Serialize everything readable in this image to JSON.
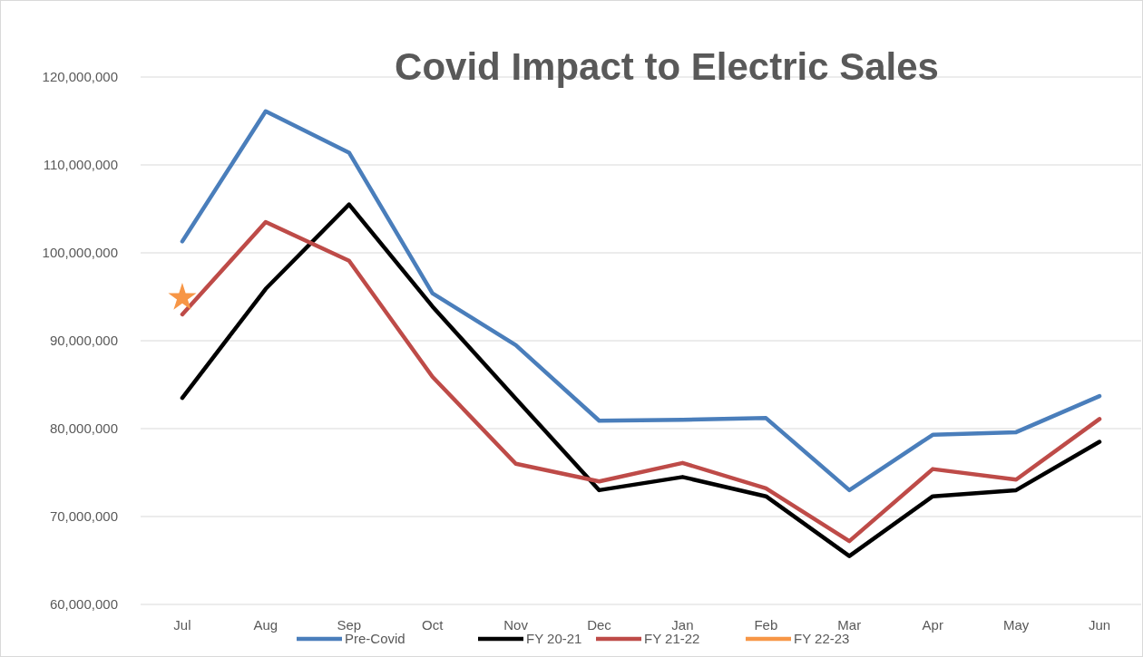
{
  "chart_data": {
    "type": "line",
    "title": "Covid Impact to Electric Sales",
    "categories": [
      "Jul",
      "Aug",
      "Sep",
      "Oct",
      "Nov",
      "Dec",
      "Jan",
      "Feb",
      "Mar",
      "Apr",
      "May",
      "Jun"
    ],
    "series": [
      {
        "name": "Pre-Covid",
        "color": "#4a7ebb",
        "values": [
          101300000,
          116100000,
          111400000,
          95400000,
          89500000,
          80900000,
          81000000,
          81200000,
          73000000,
          79300000,
          79600000,
          83700000
        ]
      },
      {
        "name": "FY 20-21",
        "color": "#000000",
        "values": [
          83500000,
          95900000,
          105500000,
          93900000,
          83400000,
          73000000,
          74500000,
          72300000,
          65500000,
          72300000,
          73000000,
          78500000
        ]
      },
      {
        "name": "FY 21-22",
        "color": "#be4b48",
        "values": [
          93000000,
          103500000,
          99100000,
          85900000,
          76000000,
          74000000,
          76100000,
          73200000,
          67200000,
          75400000,
          74200000,
          81100000
        ]
      },
      {
        "name": "FY 22-23",
        "color": "#f79646",
        "marker": "star",
        "values": [
          94900000,
          null,
          null,
          null,
          null,
          null,
          null,
          null,
          null,
          null,
          null,
          null
        ]
      }
    ],
    "ylim": [
      60000000,
      120000000
    ],
    "yticks": [
      {
        "value": 60000000,
        "label": "60,000,000"
      },
      {
        "value": 70000000,
        "label": "70,000,000"
      },
      {
        "value": 80000000,
        "label": "80,000,000"
      },
      {
        "value": 90000000,
        "label": "90,000,000"
      },
      {
        "value": 100000000,
        "label": "100,000,000"
      },
      {
        "value": 110000000,
        "label": "110,000,000"
      },
      {
        "value": 120000000,
        "label": "120,000,000"
      }
    ],
    "grid": "y",
    "legend": "bottom",
    "line_style": "solid"
  }
}
